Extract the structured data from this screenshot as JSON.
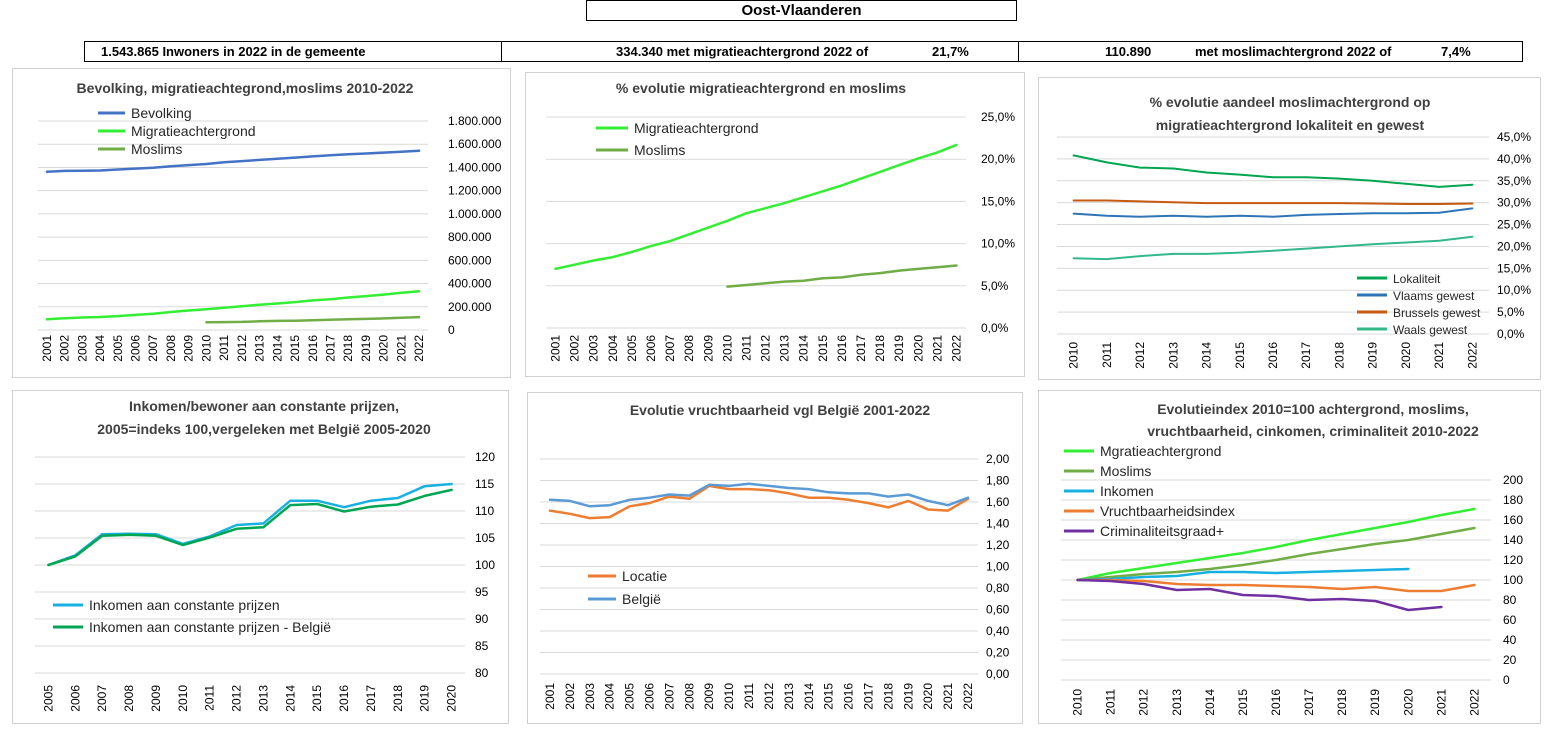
{
  "header": {
    "region": "Oost-Vlaanderen",
    "stat1": "1.543.865 Inwoners in 2022 in de gemeente",
    "stat2_text": "334.340 met migratieachtergrond 2022 of",
    "stat2_pct": "21,7%",
    "stat3_num": "110.890",
    "stat3_text": "met moslimachtergrond 2022 of",
    "stat3_pct": "7,4%"
  },
  "chart_data": [
    {
      "type": "line",
      "title": [
        "Bevolking, migratieachtegrond,moslims  2010-2022"
      ],
      "x": [
        "2001",
        "2002",
        "2003",
        "2004",
        "2005",
        "2006",
        "2007",
        "2008",
        "2009",
        "2010",
        "2011",
        "2012",
        "2013",
        "2014",
        "2015",
        "2016",
        "2017",
        "2018",
        "2019",
        "2020",
        "2021",
        "2022"
      ],
      "ylim": [
        0,
        1800000
      ],
      "yticks": [
        "0",
        "200.000",
        "400.000",
        "600.000",
        "800.000",
        "1.000.000",
        "1.200.000",
        "1.400.000",
        "1.600.000",
        "1.800.000"
      ],
      "series": [
        {
          "name": "Bevolking",
          "color": "#4472c4",
          "values": [
            1363000,
            1370000,
            1372000,
            1374000,
            1382000,
            1390000,
            1398000,
            1410000,
            1420000,
            1430000,
            1445000,
            1455000,
            1465000,
            1475000,
            1485000,
            1495000,
            1505000,
            1513000,
            1520000,
            1528000,
            1536000,
            1544000
          ]
        },
        {
          "name": "Migratieachtergrond",
          "color": "#33ee33",
          "values": [
            92000,
            102000,
            108000,
            112000,
            120000,
            130000,
            140000,
            155000,
            168000,
            178000,
            192000,
            205000,
            218000,
            228000,
            240000,
            255000,
            265000,
            280000,
            292000,
            305000,
            320000,
            334000
          ]
        },
        {
          "name": "Moslims",
          "color": "#70ad47",
          "values": [
            null,
            null,
            null,
            null,
            null,
            null,
            null,
            null,
            null,
            66000,
            68000,
            70000,
            75000,
            78000,
            80000,
            84000,
            88000,
            92000,
            96000,
            100000,
            105000,
            111000
          ]
        }
      ]
    },
    {
      "type": "line",
      "title": [
        "% evolutie migratieachtergrond  en moslims"
      ],
      "x": [
        "2001",
        "2002",
        "2003",
        "2004",
        "2005",
        "2006",
        "2007",
        "2008",
        "2009",
        "2010",
        "2011",
        "2012",
        "2013",
        "2014",
        "2015",
        "2016",
        "2017",
        "2018",
        "2019",
        "2020",
        "2021",
        "2022"
      ],
      "ylim": [
        0,
        25
      ],
      "yticks": [
        "0,0%",
        "5,0%",
        "10,0%",
        "15,0%",
        "20,0%",
        "25,0%"
      ],
      "series": [
        {
          "name": "Migratieachtergrond",
          "color": "#33ee33",
          "values": [
            7.0,
            7.5,
            8.0,
            8.4,
            9.0,
            9.7,
            10.3,
            11.1,
            11.9,
            12.7,
            13.6,
            14.2,
            14.8,
            15.5,
            16.2,
            16.9,
            17.7,
            18.5,
            19.3,
            20.1,
            20.8,
            21.7
          ]
        },
        {
          "name": "Moslims",
          "color": "#70ad47",
          "values": [
            null,
            null,
            null,
            null,
            null,
            null,
            null,
            null,
            null,
            4.9,
            5.1,
            5.3,
            5.5,
            5.6,
            5.9,
            6.0,
            6.3,
            6.5,
            6.8,
            7.0,
            7.2,
            7.4
          ]
        }
      ]
    },
    {
      "type": "line",
      "title": [
        "% evolutie aandeel moslimachtergrond op",
        "migratieachtergrond lokaliteit en gewest"
      ],
      "x": [
        "2010",
        "2011",
        "2012",
        "2013",
        "2014",
        "2015",
        "2016",
        "2017",
        "2018",
        "2019",
        "2020",
        "2021",
        "2022"
      ],
      "ylim": [
        0,
        45
      ],
      "yticks": [
        "0,0%",
        "5,0%",
        "10,0%",
        "15,0%",
        "20,0%",
        "25,0%",
        "30,0%",
        "35,0%",
        "40,0%",
        "45,0%"
      ],
      "series": [
        {
          "name": "Lokaliteit",
          "color": "#00a651",
          "values": [
            40.8,
            39.2,
            38.0,
            37.8,
            36.9,
            36.4,
            35.8,
            35.8,
            35.5,
            35.0,
            34.3,
            33.6,
            34.1
          ]
        },
        {
          "name": "Vlaams gewest",
          "color": "#2e75b6",
          "values": [
            27.5,
            27.0,
            26.8,
            27.0,
            26.8,
            27.0,
            26.8,
            27.2,
            27.4,
            27.6,
            27.6,
            27.7,
            28.7
          ]
        },
        {
          "name": "Brussels gewest",
          "color": "#c55a11",
          "values": [
            30.5,
            30.5,
            30.3,
            30.1,
            29.9,
            29.9,
            29.9,
            29.9,
            29.9,
            29.8,
            29.7,
            29.7,
            29.8
          ]
        },
        {
          "name": "Waals gewest",
          "color": "#33b88a",
          "values": [
            17.3,
            17.1,
            17.8,
            18.3,
            18.3,
            18.6,
            19.0,
            19.5,
            20.0,
            20.5,
            20.9,
            21.3,
            22.2
          ]
        }
      ]
    },
    {
      "type": "line",
      "title": [
        "Inkomen/bewoner aan constante prijzen,",
        "2005=indeks 100,vergeleken met België 2005-2020"
      ],
      "x": [
        "2005",
        "2006",
        "2007",
        "2008",
        "2009",
        "2010",
        "2011",
        "2012",
        "2013",
        "2014",
        "2015",
        "2016",
        "2017",
        "2018",
        "2019",
        "2020"
      ],
      "ylim": [
        80,
        120
      ],
      "yticks": [
        "80",
        "85",
        "90",
        "95",
        "100",
        "105",
        "110",
        "115",
        "120"
      ],
      "series": [
        {
          "name": "Inkomen aan constante prijzen",
          "color": "#17b0e0",
          "values": [
            100,
            101.8,
            105.7,
            105.8,
            105.7,
            103.9,
            105.3,
            107.4,
            107.7,
            111.9,
            111.9,
            110.7,
            111.9,
            112.4,
            114.6,
            115.0
          ]
        },
        {
          "name": "Inkomen aan constante prijzen - België",
          "color": "#00a651",
          "values": [
            100,
            101.6,
            105.4,
            105.6,
            105.4,
            103.7,
            105.1,
            106.7,
            107.0,
            111.1,
            111.3,
            109.9,
            110.8,
            111.2,
            112.8,
            113.9
          ]
        }
      ]
    },
    {
      "type": "line",
      "title": [
        "Evolutie vruchtbaarheid vgl België 2001-2022"
      ],
      "x": [
        "2001",
        "2002",
        "2003",
        "2004",
        "2005",
        "2006",
        "2007",
        "2008",
        "2009",
        "2010",
        "2011",
        "2012",
        "2013",
        "2014",
        "2015",
        "2016",
        "2017",
        "2018",
        "2019",
        "2020",
        "2021",
        "2022"
      ],
      "ylim": [
        0,
        2
      ],
      "yticks": [
        "0,00",
        "0,20",
        "0,40",
        "0,60",
        "0,80",
        "1,00",
        "1,20",
        "1,40",
        "1,60",
        "1,80",
        "2,00"
      ],
      "series": [
        {
          "name": "Locatie",
          "color": "#ed7d31",
          "values": [
            1.52,
            1.49,
            1.45,
            1.46,
            1.56,
            1.59,
            1.65,
            1.63,
            1.75,
            1.72,
            1.72,
            1.71,
            1.68,
            1.64,
            1.64,
            1.62,
            1.59,
            1.55,
            1.61,
            1.53,
            1.52,
            1.63
          ]
        },
        {
          "name": "België",
          "color": "#5b9bd5",
          "values": [
            1.62,
            1.61,
            1.56,
            1.57,
            1.62,
            1.64,
            1.67,
            1.66,
            1.76,
            1.75,
            1.77,
            1.75,
            1.73,
            1.72,
            1.69,
            1.68,
            1.68,
            1.65,
            1.67,
            1.61,
            1.57,
            1.64
          ]
        }
      ]
    },
    {
      "type": "line",
      "title": [
        "Evolutieindex 2010=100 achtergrond, moslims,",
        "vruchtbaarheid, cinkomen, criminaliteit  2010-2022"
      ],
      "x": [
        "2010",
        "2011",
        "2012",
        "2013",
        "2014",
        "2015",
        "2016",
        "2017",
        "2018",
        "2019",
        "2020",
        "2021",
        "2022"
      ],
      "ylim": [
        0,
        200
      ],
      "yticks": [
        "0",
        "20",
        "40",
        "60",
        "80",
        "100",
        "120",
        "140",
        "160",
        "180",
        "200"
      ],
      "series": [
        {
          "name": "Mgratieachtergrond",
          "color": "#33ee33",
          "values": [
            100,
            107,
            112,
            117,
            122,
            127,
            133,
            140,
            146,
            152,
            158,
            165,
            171
          ]
        },
        {
          "name": "Moslims",
          "color": "#70ad47",
          "values": [
            100,
            103,
            106,
            108,
            111,
            115,
            120,
            126,
            131,
            136,
            140,
            146,
            152
          ]
        },
        {
          "name": "Inkomen",
          "color": "#17b0e0",
          "values": [
            100,
            101,
            103,
            104,
            108,
            108,
            107,
            108,
            109,
            110,
            111,
            null,
            null
          ]
        },
        {
          "name": "Vruchtbaarheidsindex",
          "color": "#ed7d31",
          "values": [
            100,
            100,
            99,
            96,
            95,
            95,
            94,
            93,
            91,
            93,
            89,
            89,
            95
          ]
        },
        {
          "name": "Criminaliteitsgraad+",
          "color": "#7030a0",
          "values": [
            100,
            99,
            96,
            90,
            91,
            85,
            84,
            80,
            81,
            79,
            70,
            73,
            null
          ]
        }
      ]
    }
  ]
}
